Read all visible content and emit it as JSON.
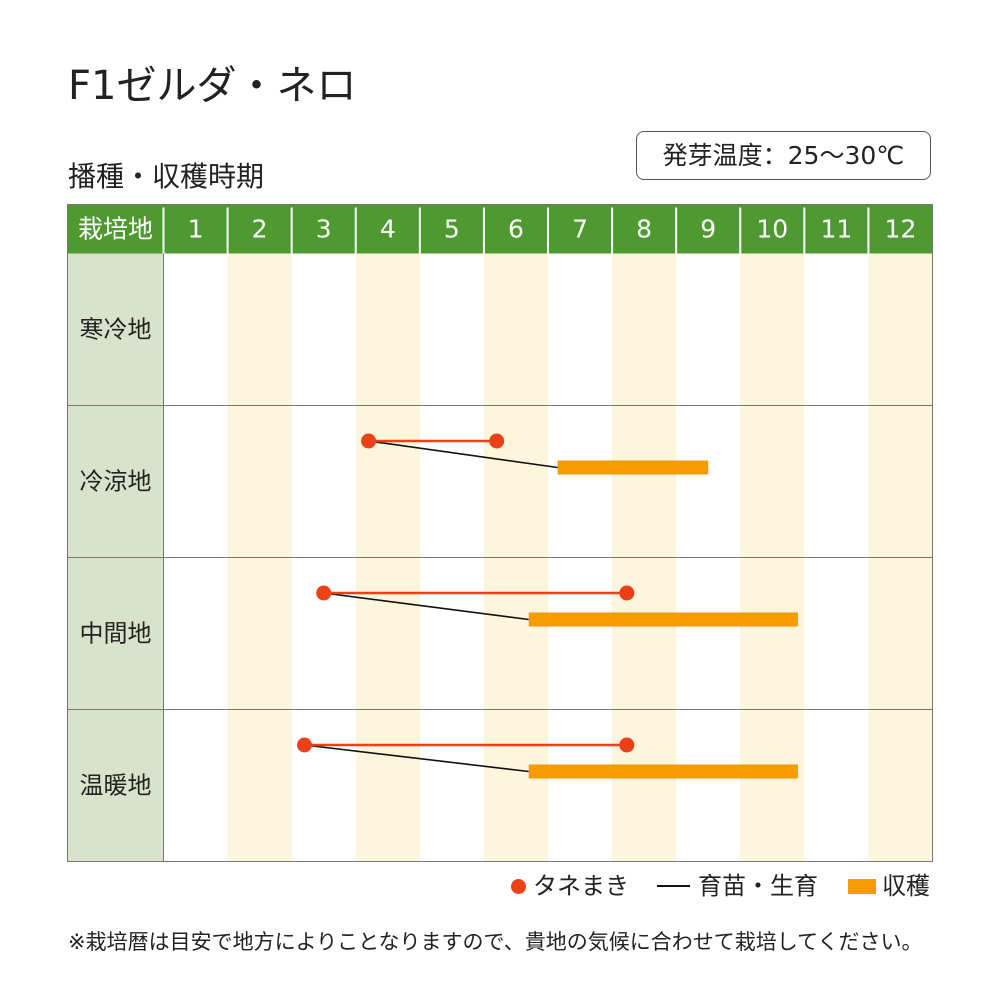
{
  "page_title": "F1ゼルダ・ネロ",
  "germination_temperature": "発芽温度：25～30℃",
  "footnote": "※栽培暦は目安で地方によりことなりますので、貴地の気候に合わせて栽培してください。",
  "colors": {
    "header": "#4e9a30",
    "header_text": "#ffffff",
    "region_column": "#d9e2ca",
    "alt_month": "#fdf5dc",
    "grid": "#767676",
    "text": "#222222",
    "sowing": "#ec4019",
    "growth": "#111111",
    "harvest": "#f59b00"
  },
  "chart_data": {
    "type": "bar",
    "title": "播種・収穫時期",
    "row_header": "栽培地",
    "categories": [
      "1",
      "2",
      "3",
      "4",
      "5",
      "6",
      "7",
      "8",
      "9",
      "10",
      "11",
      "12"
    ],
    "xlim": [
      1,
      13
    ],
    "grid": true,
    "rows": [
      {
        "region": "寒冷地"
      },
      {
        "region": "冷涼地",
        "sowing": [
          4.2,
          6.2
        ],
        "growth": [
          4.2,
          7.15
        ],
        "harvest": [
          7.15,
          9.5
        ]
      },
      {
        "region": "中間地",
        "sowing": [
          3.5,
          8.23
        ],
        "growth": [
          3.5,
          6.7
        ],
        "harvest": [
          6.7,
          10.9
        ]
      },
      {
        "region": "温暖地",
        "sowing": [
          3.2,
          8.23
        ],
        "growth": [
          3.2,
          6.7
        ],
        "harvest": [
          6.7,
          10.9
        ]
      }
    ],
    "legend": [
      {
        "label": "タネまき",
        "color": "#ec4019",
        "marker": "dot"
      },
      {
        "label": "育苗・生育",
        "color": "#111111",
        "marker": "line"
      },
      {
        "label": "収穫",
        "color": "#f59b00",
        "marker": "bar"
      }
    ],
    "legend_position": "bottom-right"
  }
}
